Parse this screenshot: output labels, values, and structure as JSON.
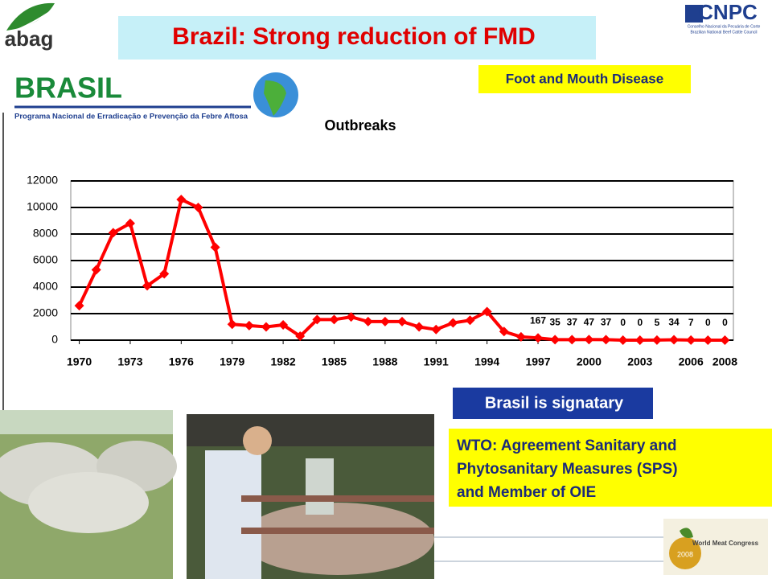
{
  "header": {
    "title": "Brazil: Strong reduction of FMD",
    "logo_left": "abag",
    "logo_right": "CNPC",
    "logo_right_line1": "Conselho Nacional da Pecuária de Corte",
    "logo_right_line2": "Brazilian National Beef Cattle Council",
    "badge": "Foot and Mouth Disease"
  },
  "program": {
    "name": "BRASIL",
    "subtitle": "Programa Nacional de Erradicação e Prevenção da Febre Aftosa"
  },
  "chart_data": {
    "type": "line",
    "title": "Outbreaks",
    "x": [
      1970,
      1971,
      1972,
      1973,
      1974,
      1975,
      1976,
      1977,
      1978,
      1979,
      1980,
      1981,
      1982,
      1983,
      1984,
      1985,
      1986,
      1987,
      1988,
      1989,
      1990,
      1991,
      1992,
      1993,
      1994,
      1995,
      1996,
      1997,
      1998,
      1999,
      2000,
      2001,
      2002,
      2003,
      2004,
      2005,
      2006,
      2007,
      2008
    ],
    "values": [
      2600,
      5300,
      8100,
      8800,
      4100,
      5000,
      10600,
      10000,
      7000,
      1200,
      1100,
      1000,
      1150,
      300,
      1550,
      1550,
      1750,
      1400,
      1400,
      1400,
      1000,
      800,
      1300,
      1500,
      2150,
      650,
      250,
      167,
      35,
      37,
      47,
      37,
      0,
      0,
      5,
      34,
      7,
      0,
      0
    ],
    "value_labels": [
      null,
      null,
      null,
      null,
      null,
      null,
      null,
      null,
      null,
      null,
      null,
      null,
      null,
      null,
      null,
      null,
      null,
      null,
      null,
      null,
      null,
      null,
      null,
      null,
      null,
      null,
      null,
      "167",
      "35",
      "37",
      "47",
      "37",
      "0",
      "0",
      "5",
      "34",
      "7",
      "0",
      "0"
    ],
    "color": "#ff0000",
    "xlim": [
      1969.5,
      2008.5
    ],
    "xticks": [
      1970,
      1973,
      1976,
      1979,
      1982,
      1985,
      1988,
      1991,
      1994,
      1997,
      2000,
      2003,
      2006,
      2008
    ],
    "ylim": [
      0,
      12000
    ],
    "yticks": [
      0,
      2000,
      4000,
      6000,
      8000,
      10000,
      12000
    ],
    "grid": true
  },
  "notes": {
    "signatory": "Brasil is signatary",
    "wto_lines": [
      "WTO: Agreement Sanitary and",
      "Phytosanitary Measures (SPS)",
      "and Member of OIE"
    ],
    "congress": "World Meat Congress",
    "congress_year": "2008"
  }
}
